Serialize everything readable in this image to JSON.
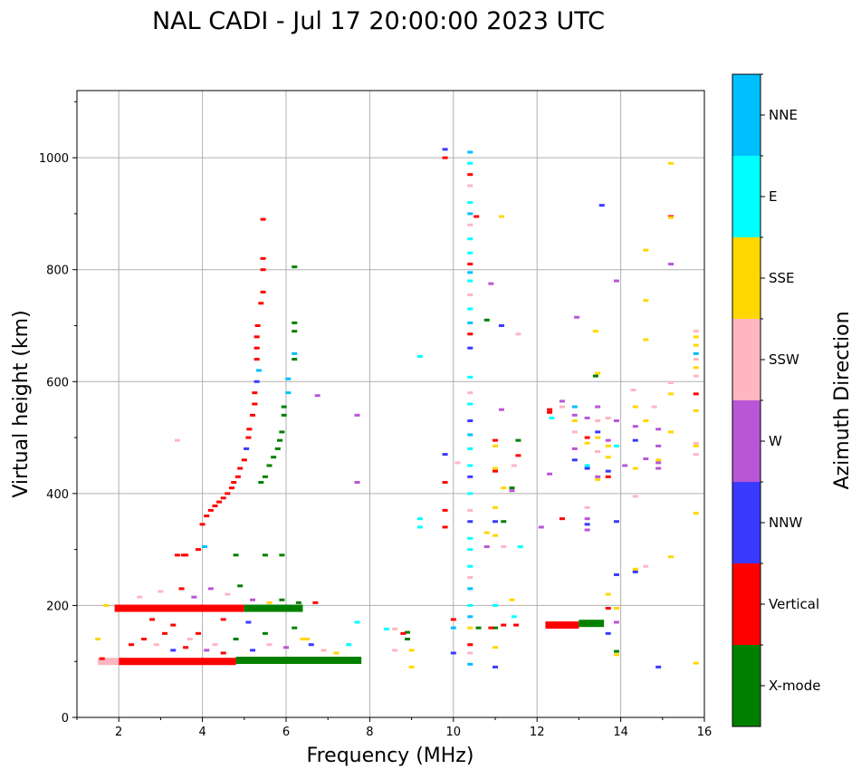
{
  "chart_data": {
    "type": "scatter",
    "title": "NAL CADI - Jul 17 20:00:00 2023 UTC",
    "xlabel": "Frequency (MHz)",
    "ylabel": "Virtual height (km)",
    "xlim": [
      1,
      16
    ],
    "ylim": [
      0,
      1120
    ],
    "xticks": [
      2,
      4,
      6,
      8,
      10,
      12,
      14,
      16
    ],
    "yticks": [
      0,
      200,
      400,
      600,
      800,
      1000
    ],
    "grid": true,
    "colorbar": {
      "label": "Azimuth Direction",
      "categories": [
        "X-mode",
        "Vertical",
        "NNW",
        "W",
        "SSW",
        "SSE",
        "E",
        "NNE"
      ],
      "colors": [
        "#008000",
        "#ff0000",
        "#3a3aff",
        "#b856d6",
        "#ffb6c1",
        "#ffd700",
        "#00ffff",
        "#00bfff"
      ]
    },
    "bands": [
      {
        "f0": 1.9,
        "f1": 5.0,
        "h": 195,
        "dir": 1
      },
      {
        "f0": 5.0,
        "f1": 6.4,
        "h": 195,
        "dir": 0
      },
      {
        "f0": 2.0,
        "f1": 4.8,
        "h": 100,
        "dir": 1
      },
      {
        "f0": 4.8,
        "f1": 7.8,
        "h": 102,
        "dir": 0
      },
      {
        "f0": 1.5,
        "f1": 2.0,
        "h": 100,
        "dir": 4
      },
      {
        "f0": 12.2,
        "f1": 13.0,
        "h": 165,
        "dir": 1
      },
      {
        "f0": 13.0,
        "f1": 13.6,
        "h": 168,
        "dir": 0
      }
    ],
    "points": [
      [
        3.4,
        290,
        1
      ],
      [
        3.55,
        290,
        1
      ],
      [
        3.9,
        300,
        1
      ],
      [
        4.0,
        345,
        1
      ],
      [
        4.1,
        360,
        1
      ],
      [
        4.2,
        370,
        1
      ],
      [
        4.3,
        378,
        1
      ],
      [
        4.4,
        385,
        1
      ],
      [
        4.5,
        392,
        1
      ],
      [
        4.6,
        400,
        1
      ],
      [
        4.7,
        410,
        1
      ],
      [
        4.75,
        420,
        1
      ],
      [
        4.85,
        430,
        1
      ],
      [
        4.9,
        445,
        1
      ],
      [
        5.0,
        460,
        1
      ],
      [
        5.05,
        480,
        2
      ],
      [
        5.1,
        500,
        1
      ],
      [
        5.12,
        515,
        1
      ],
      [
        5.2,
        540,
        1
      ],
      [
        5.25,
        560,
        1
      ],
      [
        5.25,
        580,
        1
      ],
      [
        5.3,
        600,
        2
      ],
      [
        5.35,
        620,
        7
      ],
      [
        5.3,
        640,
        1
      ],
      [
        5.3,
        660,
        1
      ],
      [
        5.3,
        680,
        1
      ],
      [
        5.32,
        700,
        1
      ],
      [
        5.4,
        740,
        1
      ],
      [
        5.45,
        760,
        1
      ],
      [
        5.45,
        800,
        1
      ],
      [
        5.45,
        820,
        1
      ],
      [
        5.45,
        890,
        1
      ],
      [
        5.4,
        420,
        0
      ],
      [
        5.5,
        430,
        0
      ],
      [
        5.6,
        450,
        0
      ],
      [
        5.7,
        465,
        0
      ],
      [
        5.8,
        480,
        0
      ],
      [
        5.85,
        495,
        0
      ],
      [
        5.9,
        510,
        0
      ],
      [
        5.95,
        540,
        0
      ],
      [
        5.95,
        555,
        0
      ],
      [
        6.05,
        580,
        7
      ],
      [
        6.05,
        605,
        7
      ],
      [
        6.2,
        640,
        0
      ],
      [
        6.2,
        690,
        0
      ],
      [
        6.2,
        705,
        0
      ],
      [
        6.2,
        650,
        7
      ],
      [
        6.2,
        805,
        0
      ],
      [
        6.75,
        575,
        3
      ],
      [
        7.7,
        540,
        3
      ],
      [
        7.7,
        420,
        3
      ],
      [
        3.4,
        495,
        4
      ],
      [
        3.6,
        290,
        1
      ],
      [
        5.5,
        290,
        0
      ],
      [
        5.9,
        290,
        0
      ],
      [
        4.8,
        290,
        0
      ],
      [
        4.05,
        305,
        7
      ],
      [
        2.3,
        130,
        1
      ],
      [
        2.6,
        140,
        1
      ],
      [
        2.9,
        130,
        4
      ],
      [
        3.1,
        150,
        1
      ],
      [
        3.3,
        120,
        2
      ],
      [
        3.6,
        125,
        1
      ],
      [
        3.7,
        140,
        4
      ],
      [
        3.9,
        150,
        1
      ],
      [
        4.1,
        120,
        3
      ],
      [
        4.3,
        130,
        4
      ],
      [
        4.5,
        115,
        1
      ],
      [
        4.8,
        140,
        0
      ],
      [
        5.2,
        120,
        2
      ],
      [
        5.6,
        130,
        4
      ],
      [
        6.0,
        125,
        3
      ],
      [
        6.4,
        140,
        5
      ],
      [
        6.6,
        130,
        2
      ],
      [
        6.9,
        120,
        4
      ],
      [
        7.2,
        115,
        5
      ],
      [
        7.5,
        130,
        6
      ],
      [
        7.7,
        170,
        6
      ],
      [
        1.5,
        140,
        5
      ],
      [
        1.6,
        105,
        1
      ],
      [
        2.5,
        215,
        4
      ],
      [
        3.0,
        225,
        4
      ],
      [
        3.5,
        230,
        1
      ],
      [
        3.8,
        215,
        3
      ],
      [
        4.2,
        230,
        3
      ],
      [
        4.6,
        220,
        4
      ],
      [
        4.9,
        235,
        0
      ],
      [
        5.2,
        210,
        3
      ],
      [
        5.6,
        205,
        5
      ],
      [
        5.9,
        210,
        0
      ],
      [
        6.3,
        205,
        0
      ],
      [
        6.7,
        205,
        1
      ],
      [
        2.8,
        175,
        1
      ],
      [
        3.3,
        165,
        1
      ],
      [
        4.5,
        175,
        1
      ],
      [
        5.1,
        170,
        2
      ],
      [
        5.5,
        150,
        0
      ],
      [
        6.2,
        160,
        0
      ],
      [
        6.5,
        140,
        5
      ],
      [
        1.7,
        200,
        5
      ],
      [
        8.4,
        158,
        6
      ],
      [
        8.6,
        158,
        4
      ],
      [
        8.9,
        152,
        0
      ],
      [
        8.9,
        140,
        0
      ],
      [
        9.0,
        120,
        5
      ],
      [
        8.6,
        120,
        4
      ],
      [
        9.0,
        90,
        5
      ],
      [
        8.8,
        150,
        1
      ],
      [
        9.2,
        355,
        6
      ],
      [
        9.2,
        340,
        6
      ],
      [
        9.2,
        645,
        6
      ],
      [
        9.8,
        1015,
        2
      ],
      [
        9.8,
        1000,
        1
      ],
      [
        9.8,
        470,
        2
      ],
      [
        9.8,
        420,
        1
      ],
      [
        9.8,
        370,
        1
      ],
      [
        9.8,
        340,
        1
      ],
      [
        10.0,
        175,
        1
      ],
      [
        10.0,
        160,
        7
      ],
      [
        10.0,
        115,
        2
      ],
      [
        10.1,
        455,
        4
      ],
      [
        10.4,
        1010,
        7
      ],
      [
        10.4,
        990,
        6
      ],
      [
        10.4,
        970,
        1
      ],
      [
        10.4,
        950,
        4
      ],
      [
        10.4,
        920,
        6
      ],
      [
        10.4,
        900,
        7
      ],
      [
        10.4,
        880,
        4
      ],
      [
        10.4,
        855,
        6
      ],
      [
        10.4,
        830,
        6
      ],
      [
        10.4,
        810,
        1
      ],
      [
        10.4,
        795,
        7
      ],
      [
        10.4,
        780,
        6
      ],
      [
        10.4,
        755,
        4
      ],
      [
        10.4,
        730,
        6
      ],
      [
        10.4,
        705,
        7
      ],
      [
        10.4,
        685,
        1
      ],
      [
        10.4,
        660,
        2
      ],
      [
        10.4,
        608,
        6
      ],
      [
        10.4,
        580,
        4
      ],
      [
        10.4,
        560,
        6
      ],
      [
        10.4,
        530,
        2
      ],
      [
        10.4,
        505,
        7
      ],
      [
        10.4,
        480,
        6
      ],
      [
        10.4,
        450,
        6
      ],
      [
        10.4,
        430,
        2
      ],
      [
        10.4,
        400,
        6
      ],
      [
        10.4,
        370,
        4
      ],
      [
        10.4,
        350,
        2
      ],
      [
        10.4,
        320,
        6
      ],
      [
        10.4,
        300,
        6
      ],
      [
        10.4,
        270,
        6
      ],
      [
        10.4,
        250,
        4
      ],
      [
        10.4,
        230,
        7
      ],
      [
        10.4,
        200,
        6
      ],
      [
        10.4,
        180,
        7
      ],
      [
        10.4,
        160,
        5
      ],
      [
        10.4,
        130,
        1
      ],
      [
        10.4,
        115,
        4
      ],
      [
        10.4,
        95,
        7
      ],
      [
        10.55,
        895,
        1
      ],
      [
        10.6,
        160,
        0
      ],
      [
        10.8,
        710,
        0
      ],
      [
        10.9,
        775,
        3
      ],
      [
        11.0,
        495,
        1
      ],
      [
        11.0,
        485,
        5
      ],
      [
        11.0,
        440,
        1
      ],
      [
        11.0,
        445,
        5
      ],
      [
        11.0,
        375,
        5
      ],
      [
        11.0,
        350,
        2
      ],
      [
        11.0,
        325,
        5
      ],
      [
        10.8,
        305,
        3
      ],
      [
        11.0,
        200,
        6
      ],
      [
        11.0,
        160,
        0
      ],
      [
        10.9,
        160,
        1
      ],
      [
        11.0,
        125,
        5
      ],
      [
        11.0,
        90,
        2
      ],
      [
        11.15,
        895,
        5
      ],
      [
        11.15,
        700,
        2
      ],
      [
        11.15,
        550,
        3
      ],
      [
        11.2,
        410,
        5
      ],
      [
        11.2,
        350,
        0
      ],
      [
        11.2,
        305,
        4
      ],
      [
        11.2,
        165,
        1
      ],
      [
        11.4,
        410,
        0
      ],
      [
        11.4,
        405,
        3
      ],
      [
        11.4,
        210,
        5
      ],
      [
        11.45,
        180,
        6
      ],
      [
        11.5,
        165,
        1
      ],
      [
        11.55,
        495,
        0
      ],
      [
        11.55,
        468,
        1
      ],
      [
        11.6,
        305,
        6
      ],
      [
        11.55,
        685,
        4
      ],
      [
        11.45,
        450,
        4
      ],
      [
        10.8,
        330,
        5
      ],
      [
        12.1,
        340,
        3
      ],
      [
        12.3,
        550,
        1
      ],
      [
        12.3,
        545,
        1
      ],
      [
        12.35,
        535,
        6
      ],
      [
        12.3,
        435,
        3
      ],
      [
        12.6,
        565,
        3
      ],
      [
        12.6,
        555,
        4
      ],
      [
        12.6,
        355,
        1
      ],
      [
        12.9,
        555,
        7
      ],
      [
        12.9,
        540,
        3
      ],
      [
        12.9,
        530,
        5
      ],
      [
        12.9,
        510,
        4
      ],
      [
        12.9,
        480,
        3
      ],
      [
        12.9,
        460,
        2
      ],
      [
        12.95,
        715,
        3
      ],
      [
        13.2,
        535,
        3
      ],
      [
        13.2,
        500,
        1
      ],
      [
        13.2,
        490,
        5
      ],
      [
        13.2,
        450,
        6
      ],
      [
        13.2,
        445,
        2
      ],
      [
        13.2,
        375,
        4
      ],
      [
        13.2,
        355,
        3
      ],
      [
        13.2,
        345,
        2
      ],
      [
        13.2,
        335,
        3
      ],
      [
        13.4,
        690,
        5
      ],
      [
        13.45,
        615,
        5
      ],
      [
        13.4,
        610,
        0
      ],
      [
        13.45,
        555,
        3
      ],
      [
        13.45,
        530,
        4
      ],
      [
        13.45,
        510,
        2
      ],
      [
        13.45,
        500,
        5
      ],
      [
        13.45,
        475,
        4
      ],
      [
        13.45,
        430,
        3
      ],
      [
        13.45,
        425,
        5
      ],
      [
        13.7,
        535,
        4
      ],
      [
        13.7,
        495,
        3
      ],
      [
        13.7,
        485,
        5
      ],
      [
        13.7,
        465,
        5
      ],
      [
        13.7,
        440,
        2
      ],
      [
        13.7,
        430,
        1
      ],
      [
        13.7,
        220,
        5
      ],
      [
        13.7,
        195,
        1
      ],
      [
        13.7,
        150,
        2
      ],
      [
        13.55,
        915,
        2
      ],
      [
        13.9,
        780,
        3
      ],
      [
        13.9,
        530,
        3
      ],
      [
        13.9,
        485,
        6
      ],
      [
        13.9,
        350,
        2
      ],
      [
        13.9,
        255,
        2
      ],
      [
        13.9,
        195,
        5
      ],
      [
        13.9,
        170,
        3
      ],
      [
        13.9,
        118,
        0
      ],
      [
        13.9,
        112,
        5
      ],
      [
        14.1,
        450,
        3
      ],
      [
        14.3,
        585,
        4
      ],
      [
        14.35,
        555,
        5
      ],
      [
        14.35,
        520,
        3
      ],
      [
        14.35,
        495,
        2
      ],
      [
        14.35,
        445,
        5
      ],
      [
        14.35,
        395,
        4
      ],
      [
        14.35,
        265,
        5
      ],
      [
        14.35,
        260,
        2
      ],
      [
        14.6,
        835,
        5
      ],
      [
        14.6,
        745,
        5
      ],
      [
        14.6,
        675,
        5
      ],
      [
        14.6,
        530,
        5
      ],
      [
        14.6,
        462,
        3
      ],
      [
        14.6,
        270,
        4
      ],
      [
        14.8,
        555,
        4
      ],
      [
        14.9,
        515,
        3
      ],
      [
        14.9,
        485,
        3
      ],
      [
        14.9,
        460,
        5
      ],
      [
        14.9,
        455,
        3
      ],
      [
        14.9,
        445,
        3
      ],
      [
        14.9,
        90,
        2
      ],
      [
        15.2,
        990,
        5
      ],
      [
        15.2,
        895,
        1
      ],
      [
        15.2,
        893,
        5
      ],
      [
        15.2,
        810,
        3
      ],
      [
        15.2,
        598,
        4
      ],
      [
        15.2,
        578,
        5
      ],
      [
        15.2,
        510,
        5
      ],
      [
        15.2,
        287,
        5
      ],
      [
        15.8,
        690,
        4
      ],
      [
        15.8,
        680,
        5
      ],
      [
        15.8,
        665,
        5
      ],
      [
        15.8,
        650,
        7
      ],
      [
        15.8,
        640,
        4
      ],
      [
        15.8,
        625,
        5
      ],
      [
        15.8,
        610,
        4
      ],
      [
        15.8,
        578,
        1
      ],
      [
        15.8,
        548,
        5
      ],
      [
        15.8,
        490,
        4
      ],
      [
        15.8,
        485,
        5
      ],
      [
        15.8,
        470,
        4
      ],
      [
        15.8,
        365,
        5
      ],
      [
        15.8,
        97,
        5
      ]
    ]
  }
}
